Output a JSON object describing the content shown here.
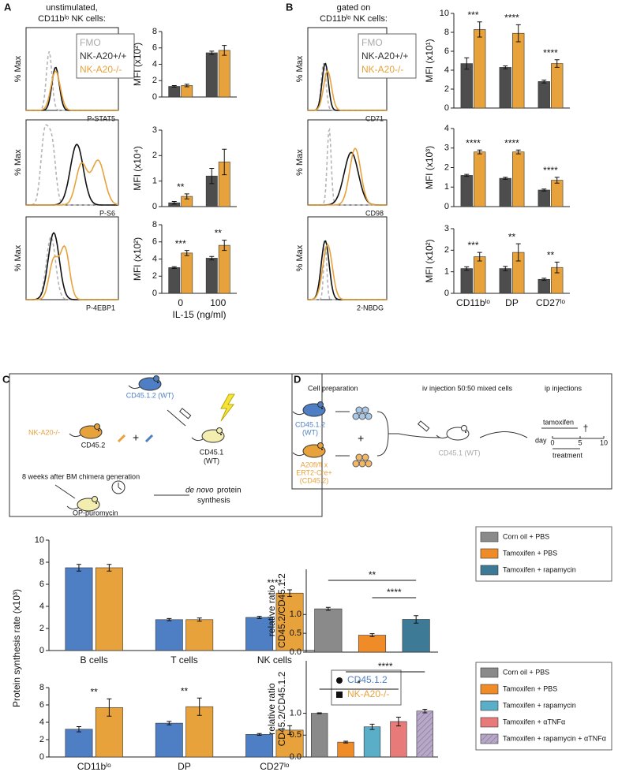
{
  "panels": {
    "A": {
      "label": "A",
      "header": [
        "unstimulated,",
        "CD11bˡᵒ NK cells:"
      ],
      "legend": [
        "FMO",
        "NK-A20+/+",
        "NK-A20-/-"
      ],
      "y_label": "% Max",
      "x_labels": [
        "P-STAT5",
        "P-S6",
        "P-4EBP1"
      ]
    },
    "B": {
      "label": "B",
      "header": [
        "gated on",
        "CD11bˡᵒ NK cells:"
      ],
      "legend": [
        "FMO",
        "NK-A20+/+",
        "NK-A20-/-"
      ],
      "y_label": "% Max",
      "x_labels": [
        "CD71",
        "CD98",
        "2-NBDG"
      ]
    },
    "C": {
      "label": "C",
      "y_label": "Protein synthesis rate (x10³)",
      "diagram": {
        "donor_wt": "CD45.1.2 (WT)",
        "donor_ko": "NK-A20-/-",
        "donor_ko_marker": "CD45.2",
        "recipient": [
          "CD45.1",
          "(WT)"
        ],
        "timing": "8 weeks after BM chimera generation",
        "injection": "OP-puromycin",
        "readout": [
          "de novo",
          "protein",
          "synthesis"
        ]
      }
    },
    "D": {
      "label": "D",
      "diagram": {
        "steps": [
          "Cell preparation",
          "iv injection 50:50 mixed cells",
          "ip injections"
        ],
        "donor_wt": [
          "CD45.1.2",
          "(WT)"
        ],
        "donor_ko": [
          "A20fl/fl x",
          "ERT2-Cre+",
          "(CD45.2)"
        ],
        "recipient": "CD45.1 (WT)",
        "drug": "tamoxifen",
        "day": "day",
        "days": [
          0,
          5,
          10
        ],
        "treatment": "treatment",
        "end": "†"
      }
    }
  },
  "chart_data": [
    {
      "type": "bar",
      "y_label": "MFI (x10²)",
      "ylim": [
        0,
        8
      ],
      "yticks": [
        0,
        2,
        4,
        6,
        8
      ],
      "series": [
        {
          "color": "#4d4d4d",
          "values": [
            1.3,
            5.4
          ],
          "errors": [
            0.1,
            0.2
          ]
        },
        {
          "color": "#e8a23c",
          "values": [
            1.4,
            5.7
          ],
          "errors": [
            0.15,
            0.6
          ]
        }
      ],
      "annotations": [
        null,
        null
      ]
    },
    {
      "type": "bar",
      "y_label": "MFI (x10⁴)",
      "ylim": [
        0,
        3
      ],
      "yticks": [
        0,
        1,
        2,
        3
      ],
      "series": [
        {
          "color": "#4d4d4d",
          "values": [
            0.15,
            1.2
          ],
          "errors": [
            0.05,
            0.3
          ]
        },
        {
          "color": "#e8a23c",
          "values": [
            0.4,
            1.75
          ],
          "errors": [
            0.1,
            0.5
          ]
        }
      ],
      "annotations": [
        "**",
        null
      ]
    },
    {
      "type": "bar",
      "y_label": "MFI (x10²)",
      "ylim": [
        0,
        8
      ],
      "yticks": [
        0,
        2,
        4,
        6,
        8
      ],
      "categories": [
        "0",
        "100"
      ],
      "x_label": "IL-15 (ng/ml)",
      "series": [
        {
          "color": "#4d4d4d",
          "values": [
            3.0,
            4.1
          ],
          "errors": [
            0.1,
            0.2
          ]
        },
        {
          "color": "#e8a23c",
          "values": [
            4.7,
            5.6
          ],
          "errors": [
            0.3,
            0.6
          ]
        }
      ],
      "annotations": [
        "***",
        "**"
      ]
    },
    {
      "type": "bar",
      "y_label": "MFI (x10¹)",
      "ylim": [
        0,
        10
      ],
      "yticks": [
        0,
        2,
        4,
        6,
        8,
        10
      ],
      "series": [
        {
          "color": "#4d4d4d",
          "values": [
            4.7,
            4.3,
            2.8
          ],
          "errors": [
            0.6,
            0.15,
            0.15
          ]
        },
        {
          "color": "#e8a23c",
          "values": [
            8.3,
            7.9,
            4.7
          ],
          "errors": [
            0.8,
            0.9,
            0.4
          ]
        }
      ],
      "annotations": [
        "***",
        "****",
        "****"
      ]
    },
    {
      "type": "bar",
      "y_label": "MFI (x10³)",
      "ylim": [
        0,
        4
      ],
      "yticks": [
        0,
        1,
        2,
        3,
        4
      ],
      "series": [
        {
          "color": "#4d4d4d",
          "values": [
            1.6,
            1.45,
            0.85
          ],
          "errors": [
            0.05,
            0.05,
            0.05
          ]
        },
        {
          "color": "#e8a23c",
          "values": [
            2.8,
            2.8,
            1.35
          ],
          "errors": [
            0.1,
            0.1,
            0.15
          ]
        }
      ],
      "annotations": [
        "****",
        "****",
        "****"
      ]
    },
    {
      "type": "bar",
      "y_label": "MFI (x10²)",
      "ylim": [
        0,
        3
      ],
      "yticks": [
        0,
        1,
        2,
        3
      ],
      "categories": [
        "CD11bˡᵒ",
        "DP",
        "CD27ˡᵒ"
      ],
      "series": [
        {
          "color": "#4d4d4d",
          "values": [
            1.15,
            1.15,
            0.65
          ],
          "errors": [
            0.08,
            0.1,
            0.05
          ]
        },
        {
          "color": "#e8a23c",
          "values": [
            1.7,
            1.9,
            1.2
          ],
          "errors": [
            0.2,
            0.4,
            0.25
          ]
        }
      ],
      "annotations": [
        "***",
        "**",
        "**"
      ]
    },
    {
      "type": "bar",
      "ylim": [
        0,
        10
      ],
      "yticks": [
        0,
        2,
        4,
        6,
        8,
        10
      ],
      "categories": [
        "B cells",
        "T cells",
        "NK cells"
      ],
      "series": [
        {
          "color": "#4e7fc4",
          "values": [
            7.5,
            2.8,
            3.0
          ],
          "errors": [
            0.3,
            0.1,
            0.1
          ]
        },
        {
          "color": "#e8a23c",
          "values": [
            7.5,
            2.8,
            5.2
          ],
          "errors": [
            0.3,
            0.15,
            0.3
          ]
        }
      ],
      "annotations": [
        null,
        null,
        "****"
      ]
    },
    {
      "type": "bar",
      "ylim": [
        0,
        8
      ],
      "yticks": [
        0,
        2,
        4,
        6,
        8
      ],
      "categories": [
        "CD11bˡᵒ",
        "DP",
        "CD27ˡᵒ"
      ],
      "series": [
        {
          "name": "CD45.1.2",
          "color": "#4e7fc4",
          "values": [
            3.2,
            3.9,
            2.6
          ],
          "errors": [
            0.3,
            0.2,
            0.1
          ]
        },
        {
          "name": "NK-A20-/-",
          "color": "#e8a23c",
          "values": [
            5.7,
            5.8,
            3.1
          ],
          "errors": [
            1.0,
            1.0,
            0.5
          ]
        }
      ],
      "annotations": [
        "**",
        "**",
        null
      ]
    },
    {
      "type": "bar",
      "y_label": [
        "relative ratio",
        "CD45.2/CD45.1.2"
      ],
      "ylim": [
        0,
        2.2
      ],
      "yticks": [
        {
          "value": 0,
          "label": "0.0"
        },
        {
          "value": 0.5,
          "label": "0.5"
        },
        {
          "value": 1,
          "label": "1.0"
        }
      ],
      "values": [
        1.15,
        0.45,
        0.87
      ],
      "errors": [
        0.04,
        0.04,
        0.1
      ],
      "colors": [
        "#8a8a8a",
        "#f08c28",
        "#3d7a95"
      ],
      "labels": [
        "Corn oil + PBS",
        "Tamoxifen + PBS",
        "Tamoxifen + rapamycin"
      ],
      "annotations": [
        {
          "text": "**",
          "pair": [
            0,
            2
          ]
        },
        {
          "text": "****",
          "pair": [
            1,
            2
          ]
        }
      ]
    },
    {
      "type": "bar",
      "y_label": [
        "relative ratio",
        "CD45.2/CD45.1.2"
      ],
      "ylim": [
        0,
        2.2
      ],
      "yticks": [
        {
          "value": 0,
          "label": "0.0"
        },
        {
          "value": 0.5,
          "label": "0.5"
        },
        {
          "value": 1,
          "label": "1.0"
        }
      ],
      "values": [
        1.0,
        0.34,
        0.69,
        0.81,
        1.05
      ],
      "errors": [
        0.01,
        0.02,
        0.06,
        0.1,
        0.04
      ],
      "colors": [
        "#8a8a8a",
        "#f08c28",
        "#5aaec8",
        "#e87a7a",
        "#b7a8c8"
      ],
      "hatched": [
        false,
        false,
        false,
        false,
        true
      ],
      "labels": [
        "Corn oil + PBS",
        "Tamoxifen + PBS",
        "Tamoxifen + rapamycin",
        "Tamoxifen + αTNFα",
        "Tamoxifen + rapamycin + αTNFα"
      ],
      "annotations": [
        {
          "text": "****",
          "pair": [
            1,
            4
          ]
        },
        {
          "text": "*",
          "pair": [
            0,
            3
          ]
        }
      ]
    }
  ]
}
